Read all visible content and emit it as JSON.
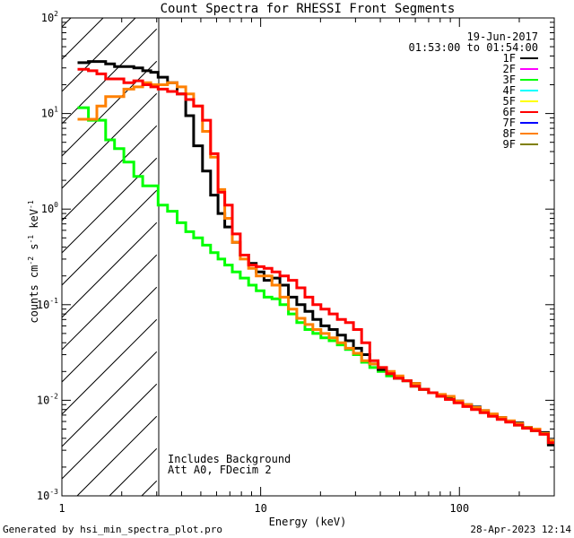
{
  "chart_data": {
    "type": "line",
    "title": "Count Spectra for RHESSI Front Segments",
    "xlabel": "Energy (keV)",
    "ylabel": {
      "base": "counts cm",
      "exp1": "-2",
      "mid1": " s",
      "exp2": "-1",
      "mid2": " keV",
      "exp3": "-1"
    },
    "xscale": "log",
    "yscale": "log",
    "xlim": [
      1,
      300
    ],
    "ylim": [
      0.001,
      100
    ],
    "x_ticks": [
      {
        "value": 1,
        "label": "1"
      },
      {
        "value": 10,
        "label": "10"
      },
      {
        "value": 100,
        "label": "100"
      }
    ],
    "y_ticks": [
      {
        "value": 0.001,
        "base": "10",
        "exp": "-3"
      },
      {
        "value": 0.01,
        "base": "10",
        "exp": "-2"
      },
      {
        "value": 0.1,
        "base": "10",
        "exp": "-1"
      },
      {
        "value": 1,
        "base": "10",
        "exp": "0"
      },
      {
        "value": 10,
        "base": "10",
        "exp": "1"
      },
      {
        "value": 100,
        "base": "10",
        "exp": "2"
      }
    ],
    "shaded_region": {
      "x_from": 1,
      "x_to": 3,
      "pattern": "diagonal hatch"
    },
    "date": "19-Jun-2017",
    "time_range": "01:53:00 to 01:54:00",
    "annotations": [
      "Includes Background",
      "Att A0, FDecim 2"
    ],
    "legend": [
      {
        "name": "1F",
        "color": "#000000"
      },
      {
        "name": "2F",
        "color": "#ff00ff"
      },
      {
        "name": "3F",
        "color": "#00ff00"
      },
      {
        "name": "4F",
        "color": "#00ffff"
      },
      {
        "name": "5F",
        "color": "#ffff00"
      },
      {
        "name": "6F",
        "color": "#ff0000"
      },
      {
        "name": "7F",
        "color": "#0000ff"
      },
      {
        "name": "8F",
        "color": "#ff8000"
      },
      {
        "name": "9F",
        "color": "#808000"
      }
    ],
    "series": [
      {
        "name": "3F",
        "color": "#00ff00",
        "x": [
          1.2,
          1.36,
          1.5,
          1.66,
          1.84,
          2.05,
          2.3,
          2.55,
          2.8,
          3.05,
          3.4,
          3.8,
          4.2,
          4.6,
          5.1,
          5.6,
          6.1,
          6.6,
          7.2,
          7.9,
          8.7,
          9.5,
          10.4,
          11.4,
          12.5,
          13.8,
          15.2,
          16.7,
          18.3,
          20.1,
          22.1,
          24.3,
          26.7,
          29.3,
          32.2,
          35.4,
          39,
          43,
          47,
          52,
          57,
          63,
          70,
          77,
          85,
          94,
          104,
          115,
          127,
          140,
          155,
          171,
          189,
          208,
          230,
          254,
          280
        ],
        "values": [
          11.5,
          8.5,
          8.5,
          5.3,
          4.3,
          3.1,
          2.2,
          1.75,
          1.75,
          1.1,
          0.95,
          0.72,
          0.58,
          0.5,
          0.42,
          0.35,
          0.3,
          0.26,
          0.22,
          0.19,
          0.16,
          0.14,
          0.12,
          0.115,
          0.1,
          0.08,
          0.065,
          0.055,
          0.05,
          0.045,
          0.042,
          0.038,
          0.034,
          0.03,
          0.025,
          0.022,
          0.02,
          0.018,
          0.017,
          0.016,
          0.014,
          0.013,
          0.012,
          0.011,
          0.0105,
          0.0095,
          0.0088,
          0.0082,
          0.0075,
          0.007,
          0.0065,
          0.006,
          0.0055,
          0.0052,
          0.0048,
          0.0045,
          0.0035
        ]
      },
      {
        "name": "1F",
        "color": "#000000",
        "x": [
          1.2,
          1.36,
          1.5,
          1.66,
          1.84,
          2.05,
          2.3,
          2.55,
          2.8,
          3.05,
          3.4,
          3.8,
          4.2,
          4.6,
          5.1,
          5.6,
          6.1,
          6.6,
          7.2,
          7.9,
          8.7,
          9.5,
          10.4,
          11.4,
          12.5,
          13.8,
          15.2,
          16.7,
          18.3,
          20.1,
          22.1,
          24.3,
          26.7,
          29.3,
          32.2,
          35.4,
          39,
          43,
          47,
          52,
          57,
          63,
          70,
          77,
          85,
          94,
          104,
          115,
          127,
          140,
          155,
          171,
          189,
          208,
          230,
          254,
          280
        ],
        "values": [
          34,
          35,
          35,
          33,
          31,
          31,
          30,
          28,
          27,
          24,
          21,
          16,
          9.5,
          4.6,
          2.5,
          1.4,
          0.9,
          0.65,
          0.45,
          0.33,
          0.27,
          0.22,
          0.18,
          0.19,
          0.16,
          0.12,
          0.1,
          0.085,
          0.07,
          0.06,
          0.055,
          0.048,
          0.042,
          0.035,
          0.03,
          0.024,
          0.021,
          0.019,
          0.017,
          0.016,
          0.015,
          0.013,
          0.012,
          0.011,
          0.0105,
          0.0098,
          0.009,
          0.0085,
          0.0078,
          0.007,
          0.0066,
          0.006,
          0.0058,
          0.0052,
          0.005,
          0.0046,
          0.0034
        ]
      },
      {
        "name": "8F",
        "color": "#ff8000",
        "x": [
          1.2,
          1.36,
          1.5,
          1.66,
          1.84,
          2.05,
          2.3,
          2.55,
          2.8,
          3.05,
          3.4,
          3.8,
          4.2,
          4.6,
          5.1,
          5.6,
          6.1,
          6.6,
          7.2,
          7.9,
          8.7,
          9.5,
          10.4,
          11.4,
          12.5,
          13.8,
          15.2,
          16.7,
          18.3,
          20.1,
          22.1,
          24.3,
          26.7,
          29.3,
          32.2,
          35.4,
          39,
          43,
          47,
          52,
          57,
          63,
          70,
          77,
          85,
          94,
          104,
          115,
          127,
          140,
          155,
          171,
          189,
          208,
          230,
          254,
          280
        ],
        "values": [
          8.7,
          8.7,
          12,
          15,
          15,
          18,
          19,
          21,
          20,
          20,
          21,
          19,
          16,
          12,
          6.5,
          3.5,
          1.6,
          0.8,
          0.45,
          0.3,
          0.24,
          0.2,
          0.2,
          0.16,
          0.12,
          0.09,
          0.072,
          0.062,
          0.055,
          0.05,
          0.045,
          0.04,
          0.035,
          0.031,
          0.026,
          0.024,
          0.022,
          0.02,
          0.018,
          0.016,
          0.015,
          0.013,
          0.012,
          0.0115,
          0.011,
          0.0098,
          0.009,
          0.0084,
          0.0078,
          0.0072,
          0.0066,
          0.0061,
          0.0057,
          0.0052,
          0.005,
          0.0045,
          0.0038
        ]
      },
      {
        "name": "6F",
        "color": "#ff0000",
        "x": [
          1.2,
          1.36,
          1.5,
          1.66,
          1.84,
          2.05,
          2.3,
          2.55,
          2.8,
          3.05,
          3.4,
          3.8,
          4.2,
          4.6,
          5.1,
          5.6,
          6.1,
          6.6,
          7.2,
          7.9,
          8.7,
          9.5,
          10.4,
          11.4,
          12.5,
          13.8,
          15.2,
          16.7,
          18.3,
          20.1,
          22.1,
          24.3,
          26.7,
          29.3,
          32.2,
          35.4,
          39,
          43,
          47,
          52,
          57,
          63,
          70,
          77,
          85,
          94,
          104,
          115,
          127,
          140,
          155,
          171,
          189,
          208,
          230,
          254,
          280
        ],
        "values": [
          29,
          28,
          26,
          23,
          23,
          21,
          22,
          20,
          19,
          18,
          17,
          16,
          14,
          12,
          8.5,
          3.8,
          1.5,
          1.1,
          0.55,
          0.33,
          0.26,
          0.25,
          0.24,
          0.22,
          0.2,
          0.18,
          0.15,
          0.12,
          0.1,
          0.09,
          0.08,
          0.07,
          0.065,
          0.055,
          0.04,
          0.026,
          0.022,
          0.019,
          0.017,
          0.016,
          0.014,
          0.013,
          0.012,
          0.011,
          0.0102,
          0.0094,
          0.0086,
          0.008,
          0.0074,
          0.0068,
          0.0063,
          0.0059,
          0.0055,
          0.0051,
          0.0048,
          0.0044,
          0.0036
        ]
      }
    ]
  },
  "footer": {
    "generated_by": "Generated by hsi_min_spectra_plot.pro",
    "timestamp": "28-Apr-2023 12:14"
  }
}
